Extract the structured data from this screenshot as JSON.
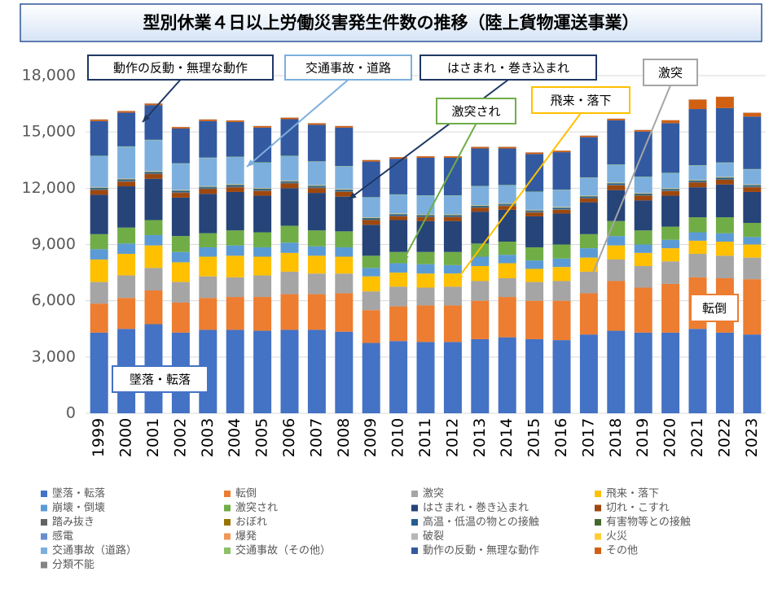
{
  "chart_data": {
    "type": "stacked_bar",
    "title": "型別休業４日以上労働災害発生件数の推移（陸上貨物運送事業）",
    "categories": [
      "1999",
      "2000",
      "2001",
      "2002",
      "2003",
      "2004",
      "2005",
      "2006",
      "2007",
      "2008",
      "2009",
      "2010",
      "2011",
      "2012",
      "2013",
      "2014",
      "2015",
      "2016",
      "2017",
      "2018",
      "2019",
      "2020",
      "2021",
      "2022",
      "2023"
    ],
    "ylim": [
      0,
      18000
    ],
    "yticks": [
      0,
      {
        "value": 3000,
        "label": "3,000"
      },
      {
        "value": 6000,
        "label": "6,000"
      },
      {
        "value": 9000,
        "label": "9,000"
      },
      {
        "value": 12000,
        "label": "12,000"
      },
      {
        "value": 15000,
        "label": "15,000"
      },
      {
        "value": 18000,
        "label": "18,000"
      }
    ],
    "grid": true,
    "series": [
      {
        "name": "墜落・転落",
        "color": "#4472c4",
        "values": [
          4300,
          4500,
          4750,
          4300,
          4450,
          4450,
          4400,
          4450,
          4450,
          4350,
          3750,
          3850,
          3800,
          3800,
          3950,
          4050,
          3950,
          3900,
          4200,
          4400,
          4300,
          4300,
          4500,
          4300,
          4200
        ]
      },
      {
        "name": "転倒",
        "color": "#ed7d31",
        "values": [
          1550,
          1650,
          1800,
          1600,
          1700,
          1750,
          1800,
          1900,
          1900,
          2050,
          1750,
          1850,
          1950,
          1950,
          2050,
          2150,
          2050,
          2100,
          2200,
          2650,
          2400,
          2600,
          2750,
          2900,
          2950
        ]
      },
      {
        "name": "激突",
        "color": "#a5a5a5",
        "values": [
          1150,
          1200,
          1200,
          1100,
          1150,
          1050,
          1150,
          1200,
          1100,
          1050,
          1000,
          1050,
          950,
          1000,
          1050,
          1000,
          1000,
          1050,
          1150,
          1150,
          1150,
          1200,
          1250,
          1200,
          1150
        ]
      },
      {
        "name": "飛来・落下",
        "color": "#ffc000",
        "values": [
          1200,
          1150,
          1200,
          1050,
          1050,
          1150,
          1000,
          1000,
          950,
          900,
          800,
          750,
          750,
          700,
          800,
          800,
          700,
          750,
          750,
          750,
          700,
          700,
          700,
          750,
          700
        ]
      },
      {
        "name": "崩壊・倒壊",
        "color": "#5b9bd5",
        "values": [
          550,
          550,
          550,
          550,
          500,
          550,
          500,
          550,
          500,
          500,
          450,
          500,
          500,
          450,
          500,
          450,
          450,
          450,
          500,
          500,
          450,
          450,
          450,
          450,
          400
        ]
      },
      {
        "name": "激突され",
        "color": "#70ad47",
        "values": [
          800,
          850,
          800,
          850,
          750,
          800,
          800,
          900,
          850,
          850,
          650,
          600,
          650,
          700,
          700,
          700,
          700,
          750,
          750,
          800,
          750,
          700,
          800,
          850,
          750
        ]
      },
      {
        "name": "はさまれ・巻き込まれ",
        "color": "#264478",
        "values": [
          2100,
          2200,
          2200,
          2050,
          2100,
          2050,
          1950,
          2000,
          2000,
          1850,
          1650,
          1700,
          1650,
          1650,
          1700,
          1700,
          1650,
          1650,
          1700,
          1650,
          1600,
          1650,
          1600,
          1750,
          1650
        ]
      },
      {
        "name": "切れ・こすれ",
        "color": "#9e480e",
        "values": [
          250,
          250,
          250,
          250,
          250,
          250,
          250,
          250,
          250,
          250,
          250,
          200,
          200,
          200,
          200,
          200,
          200,
          200,
          200,
          250,
          250,
          250,
          250,
          250,
          250
        ]
      },
      {
        "name": "踏み抜き",
        "color": "#636363",
        "values": [
          30,
          30,
          30,
          30,
          30,
          30,
          30,
          30,
          30,
          30,
          20,
          20,
          20,
          20,
          20,
          20,
          20,
          20,
          20,
          20,
          20,
          20,
          20,
          20,
          20
        ]
      },
      {
        "name": "おぼれ",
        "color": "#997300",
        "values": [
          5,
          5,
          5,
          5,
          5,
          5,
          5,
          5,
          5,
          5,
          5,
          5,
          5,
          5,
          5,
          5,
          5,
          5,
          5,
          5,
          5,
          5,
          5,
          5,
          5
        ]
      },
      {
        "name": "高温・低温の物との接触",
        "color": "#255e91",
        "values": [
          60,
          60,
          60,
          60,
          60,
          60,
          60,
          60,
          60,
          60,
          60,
          60,
          60,
          60,
          60,
          60,
          60,
          60,
          60,
          60,
          60,
          60,
          60,
          60,
          60
        ]
      },
      {
        "name": "有害物等との接触",
        "color": "#43682b",
        "values": [
          30,
          30,
          30,
          30,
          30,
          30,
          30,
          30,
          30,
          30,
          30,
          30,
          30,
          30,
          30,
          30,
          30,
          30,
          30,
          30,
          30,
          30,
          30,
          30,
          30
        ]
      },
      {
        "name": "感電",
        "color": "#698ed0",
        "values": [
          10,
          10,
          10,
          10,
          10,
          10,
          10,
          10,
          10,
          10,
          10,
          10,
          10,
          10,
          10,
          10,
          10,
          10,
          10,
          10,
          10,
          10,
          10,
          10,
          10
        ]
      },
      {
        "name": "爆発",
        "color": "#f1975a",
        "values": [
          5,
          5,
          5,
          5,
          5,
          5,
          5,
          5,
          5,
          5,
          5,
          5,
          5,
          5,
          5,
          5,
          5,
          5,
          5,
          5,
          5,
          5,
          5,
          5,
          5
        ]
      },
      {
        "name": "破裂",
        "color": "#b7b7b7",
        "values": [
          10,
          10,
          10,
          10,
          10,
          10,
          10,
          10,
          10,
          10,
          10,
          10,
          10,
          10,
          10,
          10,
          10,
          10,
          10,
          10,
          10,
          10,
          10,
          10,
          10
        ]
      },
      {
        "name": "火災",
        "color": "#ffcd33",
        "values": [
          10,
          10,
          10,
          10,
          10,
          10,
          10,
          10,
          10,
          10,
          10,
          10,
          10,
          10,
          10,
          10,
          10,
          10,
          10,
          10,
          10,
          10,
          10,
          10,
          10
        ]
      },
      {
        "name": "交通事故（道路）",
        "color": "#7cafdd",
        "values": [
          1650,
          1700,
          1650,
          1400,
          1500,
          1450,
          1350,
          1300,
          1250,
          1200,
          1050,
          1000,
          1000,
          1000,
          1000,
          950,
          950,
          900,
          950,
          950,
          850,
          800,
          750,
          750,
          800
        ]
      },
      {
        "name": "交通事故（その他）",
        "color": "#8cc168",
        "values": [
          20,
          20,
          20,
          20,
          20,
          20,
          20,
          20,
          20,
          20,
          20,
          20,
          20,
          20,
          20,
          20,
          20,
          20,
          20,
          20,
          20,
          20,
          20,
          20,
          20
        ]
      },
      {
        "name": "動作の反動・無理な動作",
        "color": "#335aa1",
        "values": [
          1850,
          1800,
          1850,
          1850,
          1950,
          1850,
          1850,
          1950,
          1950,
          2050,
          1900,
          1900,
          2000,
          2000,
          2000,
          1950,
          2000,
          2000,
          2150,
          2350,
          2400,
          2650,
          3000,
          2900,
          2800
        ]
      },
      {
        "name": "その他",
        "color": "#d26012",
        "values": [
          80,
          80,
          80,
          80,
          80,
          80,
          80,
          80,
          80,
          80,
          80,
          80,
          80,
          80,
          80,
          80,
          80,
          80,
          80,
          80,
          80,
          150,
          500,
          600,
          200
        ]
      },
      {
        "name": "分類不能",
        "color": "#848484",
        "values": [
          10,
          10,
          10,
          10,
          10,
          10,
          10,
          10,
          10,
          10,
          10,
          10,
          10,
          10,
          10,
          10,
          10,
          10,
          10,
          10,
          10,
          10,
          10,
          10,
          10
        ]
      }
    ],
    "annotations": [
      "動作の反動・無理な動作",
      "交通事故・道路",
      "はさまれ・巻き込まれ",
      "激突され",
      "飛来・落下",
      "激突",
      "転倒",
      "墜落・転落"
    ]
  }
}
